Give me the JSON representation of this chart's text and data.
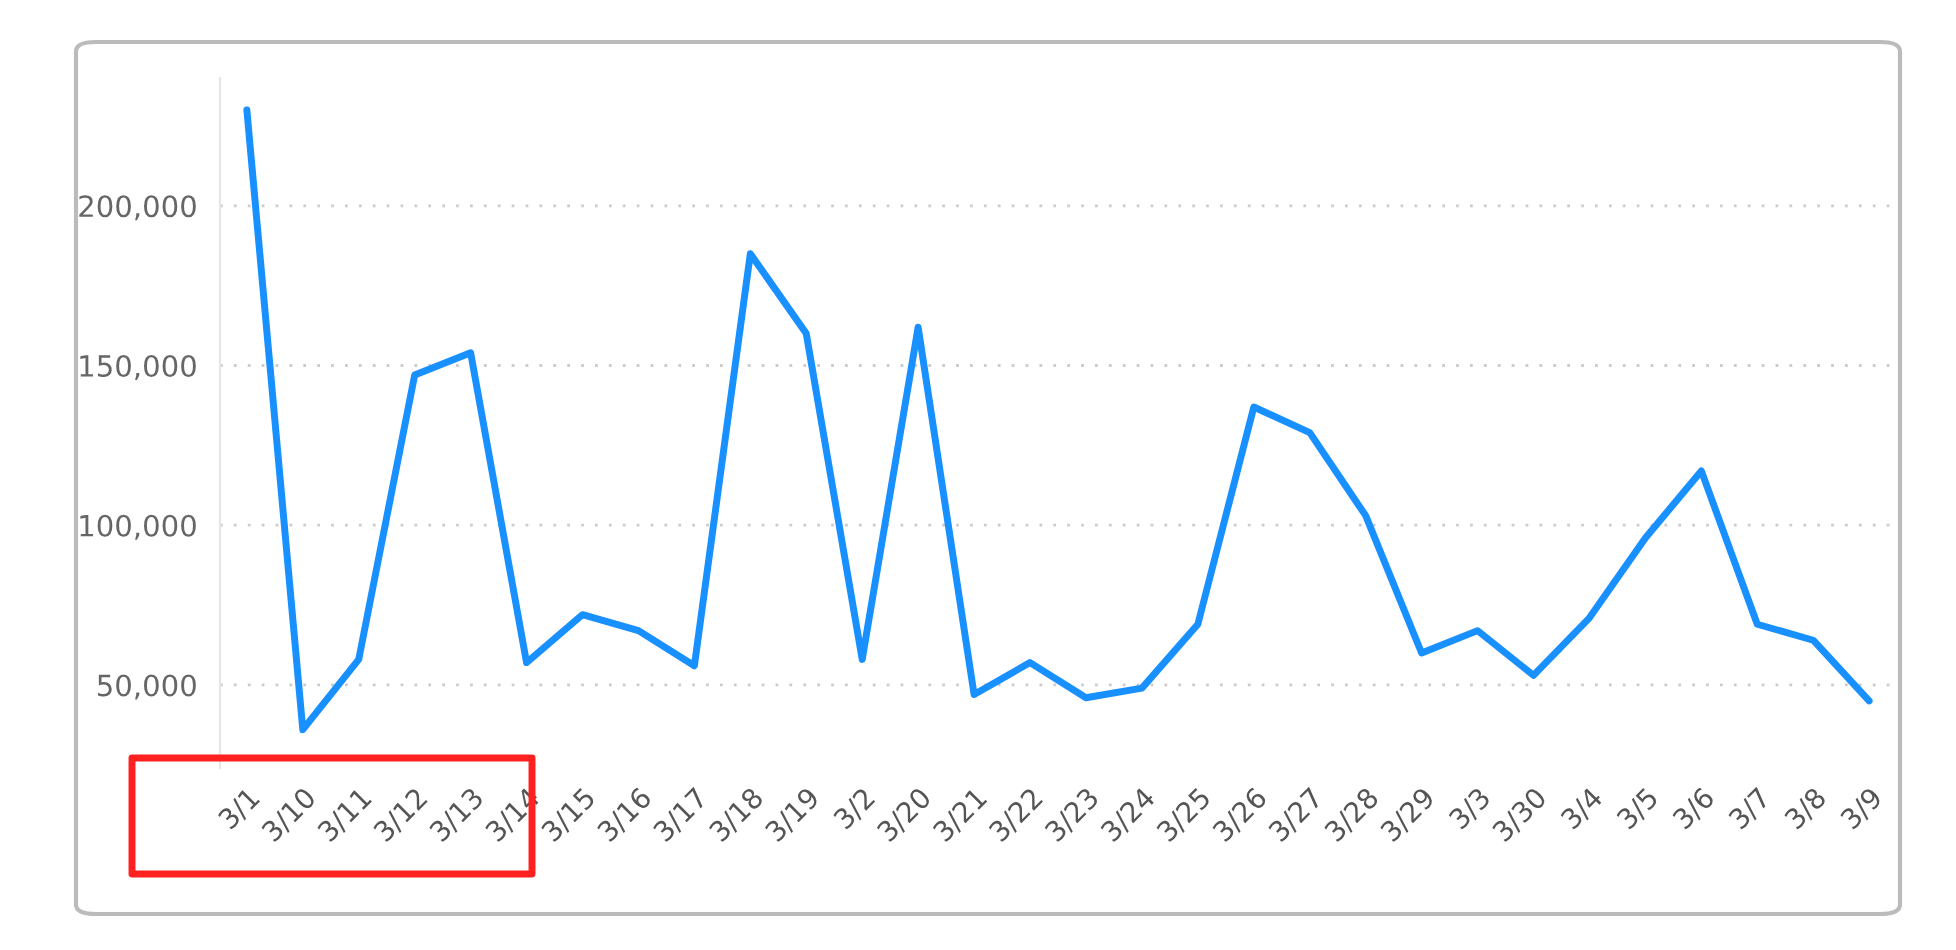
{
  "chart_data": {
    "type": "line",
    "categories": [
      "3/1",
      "3/10",
      "3/11",
      "3/12",
      "3/13",
      "3/14",
      "3/15",
      "3/16",
      "3/17",
      "3/18",
      "3/19",
      "3/2",
      "3/20",
      "3/21",
      "3/22",
      "3/23",
      "3/24",
      "3/25",
      "3/26",
      "3/27",
      "3/28",
      "3/29",
      "3/3",
      "3/30",
      "3/4",
      "3/5",
      "3/6",
      "3/7",
      "3/8",
      "3/9"
    ],
    "series": [
      {
        "color": "#1890ff",
        "values": [
          230000,
          36000,
          58000,
          147000,
          154000,
          57000,
          72000,
          67000,
          56000,
          185000,
          160000,
          58000,
          162000,
          47000,
          57000,
          46000,
          49000,
          69000,
          137000,
          129000,
          103000,
          60000,
          67000,
          53000,
          71000,
          96000,
          117000,
          69000,
          64000,
          45000
        ]
      }
    ],
    "ylim": [
      24000,
      240000
    ],
    "yticks": [
      {
        "value": 50000,
        "label": "50,000"
      },
      {
        "value": 100000,
        "label": "100,000"
      },
      {
        "value": 150000,
        "label": "150,000"
      },
      {
        "value": 200000,
        "label": "200,000"
      }
    ],
    "grid": "y"
  }
}
